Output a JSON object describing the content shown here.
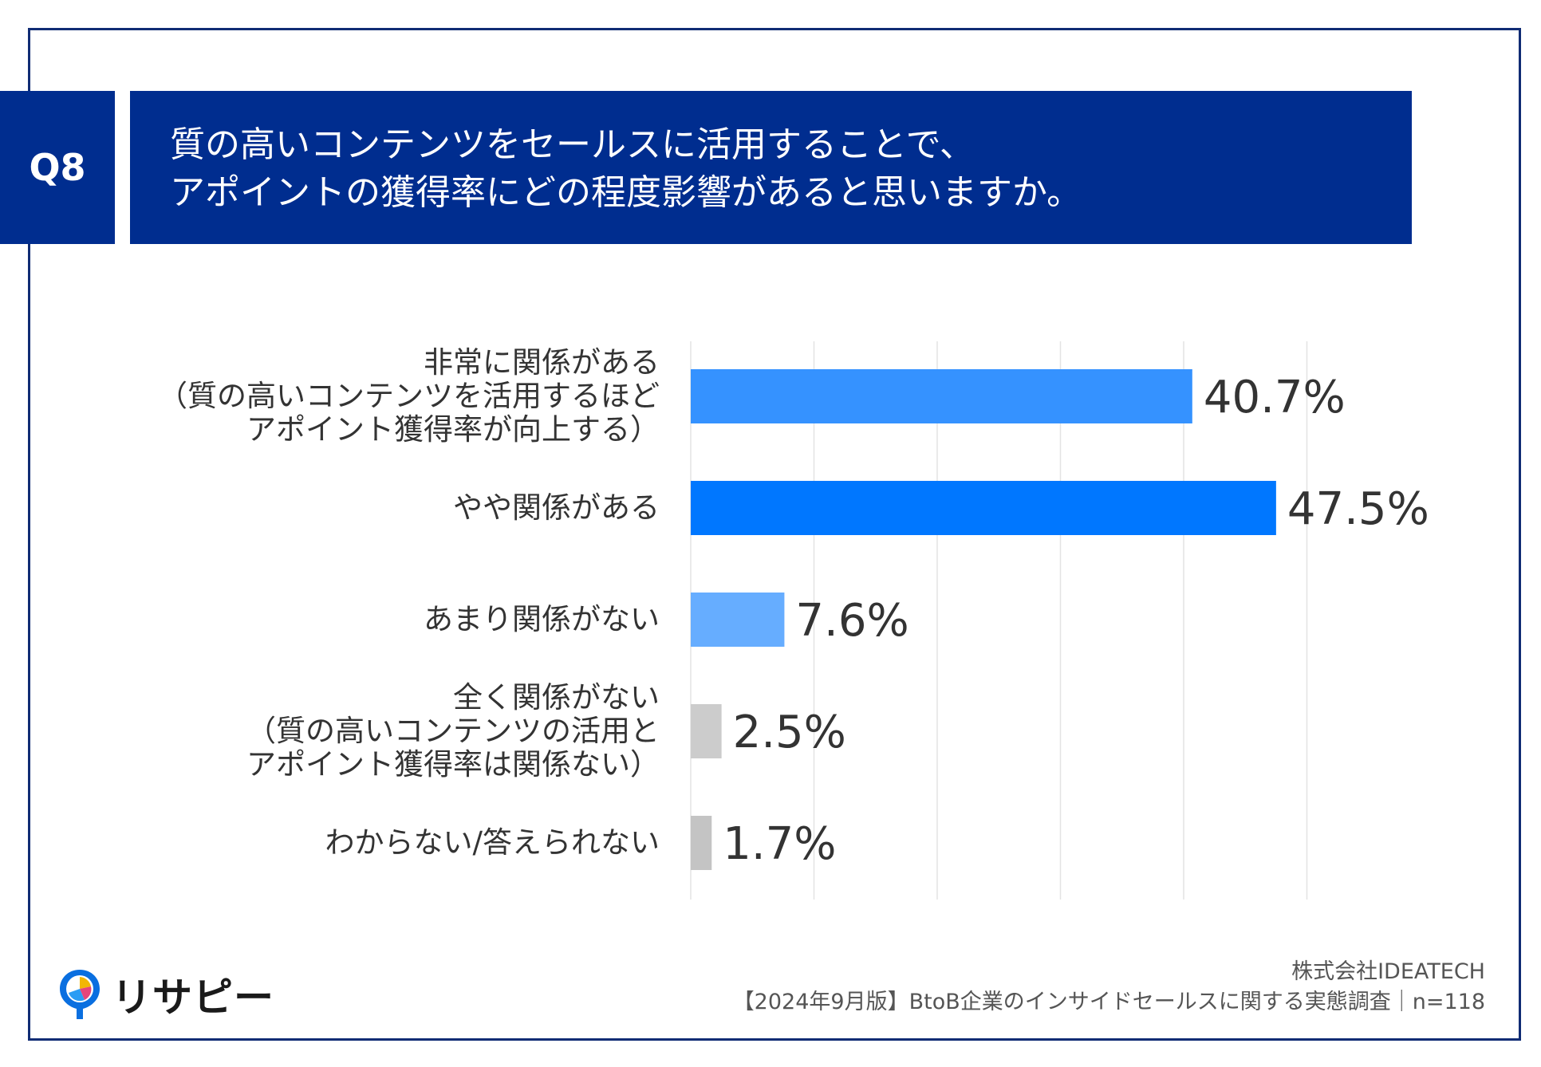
{
  "header": {
    "badge": "Q8",
    "question_line1": "質の高いコンテンツをセールスに活用することで、",
    "question_line2": "アポイントの獲得率にどの程度影響があると思いますか。"
  },
  "chart_data": {
    "type": "bar",
    "orientation": "horizontal",
    "title": "質の高いコンテンツをセールスに活用することで、アポイントの獲得率にどの程度影響があると思いますか。",
    "categories": [
      [
        "非常に関係がある",
        "（質の高いコンテンツを活用するほど",
        "アポイント獲得率が向上する）"
      ],
      [
        "やや関係がある"
      ],
      [
        "あまり関係がない"
      ],
      [
        "全く関係がない",
        "（質の高いコンテンツの活用と",
        "アポイント獲得率は関係ない）"
      ],
      [
        "わからない/答えられない"
      ]
    ],
    "values": [
      40.7,
      47.5,
      7.6,
      2.5,
      1.7
    ],
    "value_labels": [
      "40.7%",
      "47.5%",
      "7.6%",
      "2.5%",
      "1.7%"
    ],
    "bar_colors": [
      "#3592ff",
      "#0077ff",
      "#66adff",
      "#cccccc",
      "#c4c4c4"
    ],
    "unit": "%",
    "xlim": [
      0,
      50
    ],
    "grid": true
  },
  "footer": {
    "company": "株式会社IDEATECH",
    "survey": "【2024年9月版】BtoB企業のインサイドセールスに関する実態調査｜n=118",
    "logo_text": "リサピー"
  },
  "colors": {
    "brand_navy": "#002d8f",
    "frame": "#102c74"
  }
}
